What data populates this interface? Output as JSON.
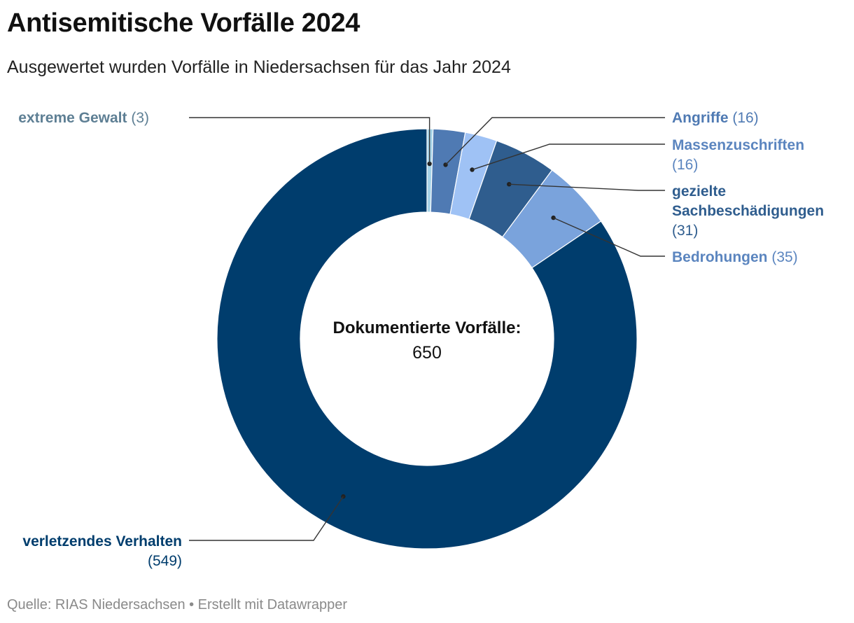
{
  "header": {
    "title": "Antisemitische Vorfälle 2024",
    "subtitle": "Ausgewertet wurden Vorfälle in Niedersachsen für das Jahr 2024"
  },
  "footer": {
    "source": "Quelle: RIAS Niedersachsen • Erstellt mit Datawrapper"
  },
  "chart_data": {
    "type": "pie",
    "variant": "donut",
    "title": "Antisemitische Vorfälle 2024",
    "subtitle": "Ausgewertet wurden Vorfälle in Niedersachsen für das Jahr 2024",
    "center": {
      "label": "Dokumentierte Vorfälle:",
      "value": "650"
    },
    "slices": [
      {
        "name": "extreme Gewalt",
        "value": 3,
        "value_label": "(3)",
        "color": "#a5d3e8",
        "label_color": "#5e7f94"
      },
      {
        "name": "Angriffe",
        "value": 16,
        "value_label": "(16)",
        "color": "#4f7ab3",
        "label_color": "#4f7ab3"
      },
      {
        "name": "Massenzuschriften",
        "value": 16,
        "value_label": "(16)",
        "color": "#9fc2f5",
        "label_color": "#5b85bf"
      },
      {
        "name": "gezielte Sachbeschädigungen",
        "value": 31,
        "value_label": "(31)",
        "color": "#2f5d8e",
        "label_color": "#2f5d8e"
      },
      {
        "name": "Bedrohungen",
        "value": 35,
        "value_label": "(35)",
        "color": "#7aa3dc",
        "label_color": "#5b85bf"
      },
      {
        "name": "verletzendes Verhalten",
        "value": 549,
        "value_label": "(549)",
        "color": "#003d6d",
        "label_color": "#003d6d"
      }
    ],
    "legend": "none (direct labels)"
  }
}
